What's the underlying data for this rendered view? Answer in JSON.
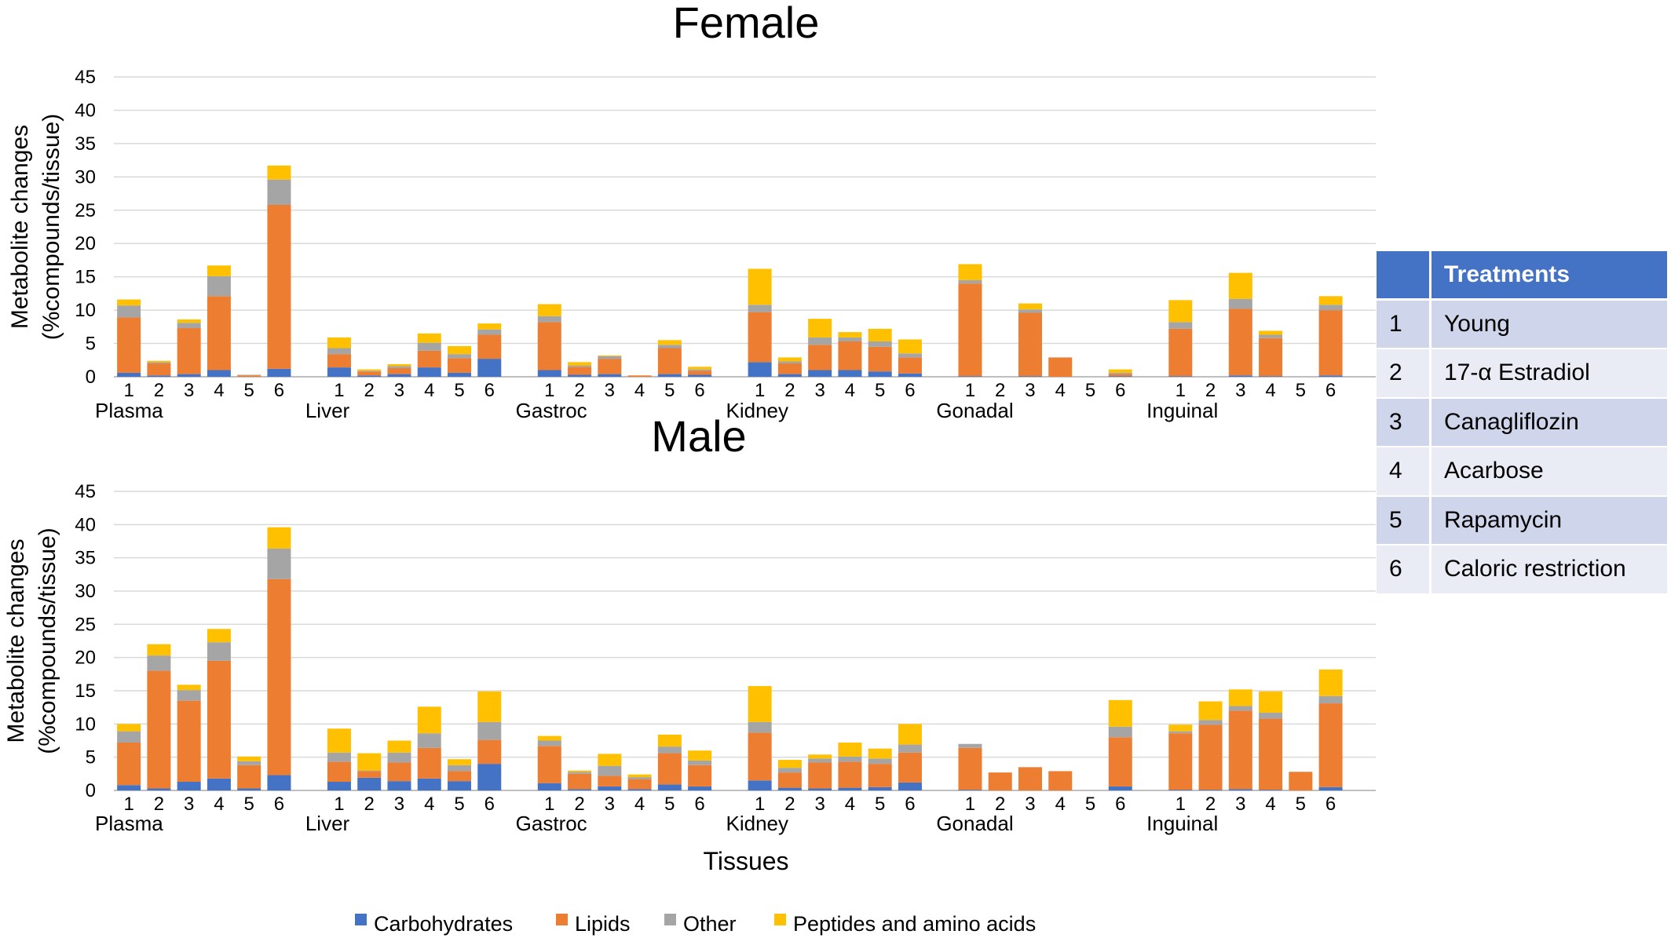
{
  "chart_data": {
    "type": "bar",
    "stacked": true,
    "xlabel": "Tissues",
    "ylabel_line1": "Metabolite changes",
    "ylabel_line2": "(%compounds/tissue)",
    "ylim": [
      0,
      45
    ],
    "yticks": [
      "0",
      "5",
      "10",
      "15",
      "20",
      "25",
      "30",
      "35",
      "40",
      "45"
    ],
    "treatment_ticks": [
      "1",
      "2",
      "3",
      "4",
      "5",
      "6"
    ],
    "legend": {
      "position": "bottom",
      "entries": [
        {
          "name": "Carbohydrates",
          "color": "#4472c4"
        },
        {
          "name": "Lipids",
          "color": "#ed7d31"
        },
        {
          "name": "Other",
          "color": "#a5a5a5"
        },
        {
          "name": "Peptides and amino acids",
          "color": "#ffc000"
        }
      ]
    },
    "panels": [
      {
        "title": "Female",
        "groups": [
          {
            "tissue": "Plasma",
            "bars": [
              [
                0.6,
                8.3,
                1.8,
                0.9
              ],
              [
                0.2,
                1.8,
                0.2,
                0.2
              ],
              [
                0.4,
                6.9,
                0.8,
                0.5
              ],
              [
                1,
                11.1,
                3,
                1.6
              ],
              [
                0,
                0.2,
                0.1,
                0
              ],
              [
                1.2,
                24.6,
                3.8,
                2.1
              ]
            ]
          },
          {
            "tissue": "Liver",
            "bars": [
              [
                1.4,
                2,
                0.9,
                1.6
              ],
              [
                0.2,
                0.6,
                0.1,
                0.2
              ],
              [
                0.4,
                0.9,
                0.3,
                0.3
              ],
              [
                1.4,
                2.5,
                1.2,
                1.4
              ],
              [
                0.6,
                2.2,
                0.6,
                1.2
              ],
              [
                2.7,
                3.6,
                0.8,
                0.9
              ]
            ]
          },
          {
            "tissue": "Gastroc",
            "bars": [
              [
                1,
                7.2,
                0.9,
                1.8
              ],
              [
                0.3,
                1.2,
                0.2,
                0.5
              ],
              [
                0.4,
                2.3,
                0.4,
                0.1
              ],
              [
                0,
                0.2,
                0,
                0
              ],
              [
                0.4,
                3.9,
                0.5,
                0.7
              ],
              [
                0.3,
                0.6,
                0.2,
                0.4
              ]
            ]
          },
          {
            "tissue": "Kidney",
            "bars": [
              [
                2.2,
                7.5,
                1.1,
                5.4
              ],
              [
                0.4,
                1.6,
                0.3,
                0.6
              ],
              [
                1,
                3.8,
                1.1,
                2.8
              ],
              [
                1,
                4.3,
                0.6,
                0.8
              ],
              [
                0.8,
                3.7,
                0.8,
                1.9
              ],
              [
                0.5,
                2.4,
                0.6,
                2.1
              ]
            ]
          },
          {
            "tissue": "Gonadal",
            "bars": [
              [
                0.1,
                13.9,
                0.5,
                2.4
              ],
              [
                0,
                0,
                0,
                0
              ],
              [
                0.1,
                9.5,
                0.5,
                0.9
              ],
              [
                0,
                2.9,
                0,
                0
              ],
              [
                0,
                0,
                0,
                0
              ],
              [
                0.1,
                0.3,
                0.2,
                0.5
              ]
            ]
          },
          {
            "tissue": "Inguinal",
            "bars": [
              [
                0.1,
                7.1,
                1,
                3.3
              ],
              [
                0,
                0,
                0,
                0
              ],
              [
                0.2,
                10,
                1.5,
                3.9
              ],
              [
                0.1,
                5.7,
                0.5,
                0.6
              ],
              [
                0,
                0,
                0,
                0
              ],
              [
                0.2,
                9.8,
                0.8,
                1.3
              ]
            ]
          }
        ]
      },
      {
        "title": "Male",
        "groups": [
          {
            "tissue": "Plasma",
            "bars": [
              [
                0.8,
                6.4,
                1.7,
                1.1
              ],
              [
                0.3,
                17.7,
                2.3,
                1.7
              ],
              [
                1.3,
                12.2,
                1.6,
                0.8
              ],
              [
                1.8,
                17.7,
                2.8,
                2
              ],
              [
                0.3,
                3.5,
                0.6,
                0.7
              ],
              [
                2.3,
                29.5,
                4.6,
                3.2
              ]
            ]
          },
          {
            "tissue": "Liver",
            "bars": [
              [
                1.3,
                3,
                1.4,
                3.6
              ],
              [
                1.9,
                1,
                0.1,
                2.6
              ],
              [
                1.4,
                2.8,
                1.5,
                1.8
              ],
              [
                1.8,
                4.6,
                2.2,
                4
              ],
              [
                1.4,
                1.5,
                0.9,
                0.9
              ],
              [
                4,
                3.6,
                2.7,
                4.6
              ]
            ]
          },
          {
            "tissue": "Gastroc",
            "bars": [
              [
                1.1,
                5.6,
                0.8,
                0.7
              ],
              [
                0.2,
                2.3,
                0.3,
                0.2
              ],
              [
                0.6,
                1.6,
                1.5,
                1.8
              ],
              [
                0.2,
                1.5,
                0.3,
                0.4
              ],
              [
                0.9,
                4.7,
                1,
                1.8
              ],
              [
                0.6,
                3.2,
                0.7,
                1.5
              ]
            ]
          },
          {
            "tissue": "Kidney",
            "bars": [
              [
                1.5,
                7.2,
                1.6,
                5.4
              ],
              [
                0.4,
                2.3,
                0.7,
                1.2
              ],
              [
                0.3,
                3.9,
                0.6,
                0.6
              ],
              [
                0.4,
                3.9,
                0.8,
                2.1
              ],
              [
                0.5,
                3.5,
                0.8,
                1.5
              ],
              [
                1.2,
                4.5,
                1.2,
                3.1
              ]
            ]
          },
          {
            "tissue": "Gonadal",
            "bars": [
              [
                0.1,
                6.3,
                0.6,
                0
              ],
              [
                0,
                2.7,
                0,
                0
              ],
              [
                0,
                3.5,
                0,
                0
              ],
              [
                0,
                2.9,
                0,
                0
              ],
              [
                0,
                0,
                0,
                0
              ],
              [
                0.6,
                7.4,
                1.6,
                4
              ]
            ]
          },
          {
            "tissue": "Inguinal",
            "bars": [
              [
                0.1,
                8.5,
                0.3,
                1
              ],
              [
                0.1,
                9.8,
                0.7,
                2.8
              ],
              [
                0.2,
                11.8,
                0.7,
                2.5
              ],
              [
                0.1,
                10.7,
                0.9,
                3.2
              ],
              [
                0,
                2.8,
                0,
                0
              ],
              [
                0.5,
                12.6,
                1.1,
                4
              ]
            ]
          }
        ]
      }
    ]
  },
  "treatments": {
    "header_num": "",
    "header_label": "Treatments",
    "rows": [
      {
        "num": "1",
        "label": "Young"
      },
      {
        "num": "2",
        "label": "17-α Estradiol"
      },
      {
        "num": "3",
        "label": "Canagliflozin"
      },
      {
        "num": "4",
        "label": "Acarbose"
      },
      {
        "num": "5",
        "label": "Rapamycin"
      },
      {
        "num": "6",
        "label": "Caloric restriction"
      }
    ]
  }
}
